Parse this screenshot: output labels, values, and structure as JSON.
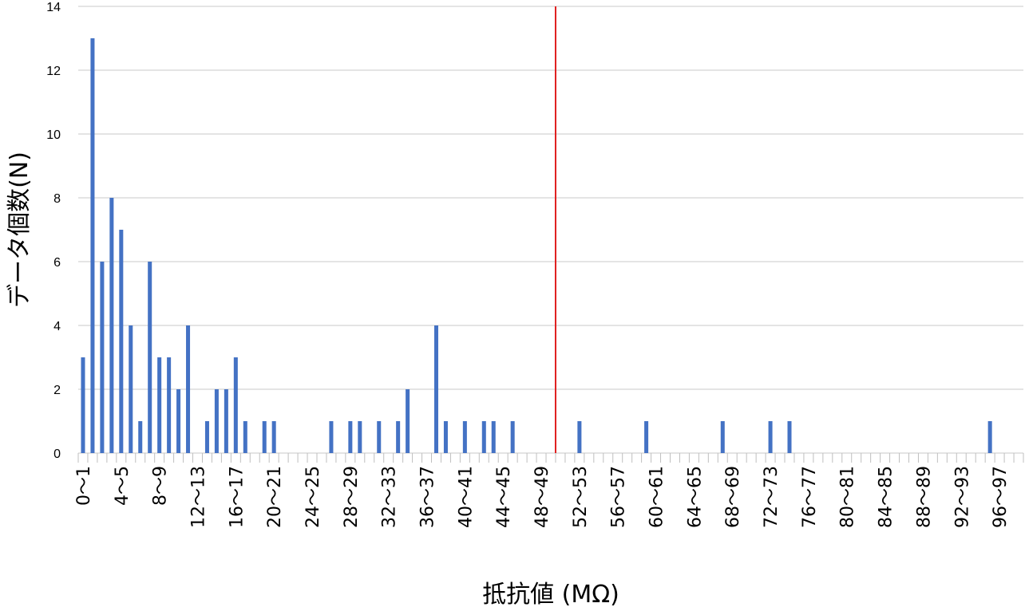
{
  "chart_data": {
    "type": "bar",
    "title": "",
    "xlabel": "抵抗値 (MΩ)",
    "ylabel": "データ個数(N)",
    "ylim": [
      0,
      14
    ],
    "yticks": [
      0,
      2,
      4,
      6,
      8,
      10,
      12,
      14
    ],
    "grid": true,
    "legend": "none",
    "bar_color": "#4472C4",
    "reference_line_color": "#E02020",
    "reference_line_x": "50〜51",
    "categories": [
      "0〜1",
      "1〜2",
      "2〜3",
      "3〜4",
      "4〜5",
      "5〜6",
      "6〜7",
      "7〜8",
      "8〜9",
      "9〜10",
      "10〜11",
      "11〜12",
      "12〜13",
      "13〜14",
      "14〜15",
      "15〜16",
      "16〜17",
      "17〜18",
      "18〜19",
      "19〜20",
      "20〜21",
      "21〜22",
      "22〜23",
      "23〜24",
      "24〜25",
      "25〜26",
      "26〜27",
      "27〜28",
      "28〜29",
      "29〜30",
      "30〜31",
      "31〜32",
      "32〜33",
      "33〜34",
      "34〜35",
      "35〜36",
      "36〜37",
      "37〜38",
      "38〜39",
      "39〜40",
      "40〜41",
      "41〜42",
      "42〜43",
      "43〜44",
      "44〜45",
      "45〜46",
      "46〜47",
      "47〜48",
      "48〜49",
      "49〜50",
      "50〜51",
      "51〜52",
      "52〜53",
      "53〜54",
      "54〜55",
      "55〜56",
      "56〜57",
      "57〜58",
      "58〜59",
      "59〜60",
      "60〜61",
      "61〜62",
      "62〜63",
      "63〜64",
      "64〜65",
      "65〜66",
      "66〜67",
      "67〜68",
      "68〜69",
      "69〜70",
      "70〜71",
      "71〜72",
      "72〜73",
      "73〜74",
      "74〜75",
      "75〜76",
      "76〜77",
      "77〜78",
      "78〜79",
      "79〜80",
      "80〜81",
      "81〜82",
      "82〜83",
      "83〜84",
      "84〜85",
      "85〜86",
      "86〜87",
      "87〜88",
      "88〜89",
      "89〜90",
      "90〜91",
      "91〜92",
      "92〜93",
      "93〜94",
      "94〜95",
      "95〜96",
      "96〜97",
      "97〜98",
      "98〜99"
    ],
    "values": [
      3,
      13,
      6,
      8,
      7,
      4,
      1,
      6,
      3,
      3,
      2,
      4,
      0,
      1,
      2,
      2,
      3,
      1,
      0,
      1,
      1,
      0,
      0,
      0,
      0,
      0,
      1,
      0,
      1,
      1,
      0,
      1,
      0,
      1,
      2,
      0,
      0,
      4,
      1,
      0,
      1,
      0,
      1,
      1,
      0,
      1,
      0,
      0,
      0,
      0,
      0,
      0,
      1,
      0,
      0,
      0,
      0,
      0,
      0,
      1,
      0,
      0,
      0,
      0,
      0,
      0,
      0,
      1,
      0,
      0,
      0,
      0,
      1,
      0,
      1,
      0,
      0,
      0,
      0,
      0,
      0,
      0,
      0,
      0,
      0,
      0,
      0,
      0,
      0,
      0,
      0,
      0,
      0,
      0,
      0,
      1,
      0,
      0,
      0
    ],
    "labeled_every": 4
  }
}
